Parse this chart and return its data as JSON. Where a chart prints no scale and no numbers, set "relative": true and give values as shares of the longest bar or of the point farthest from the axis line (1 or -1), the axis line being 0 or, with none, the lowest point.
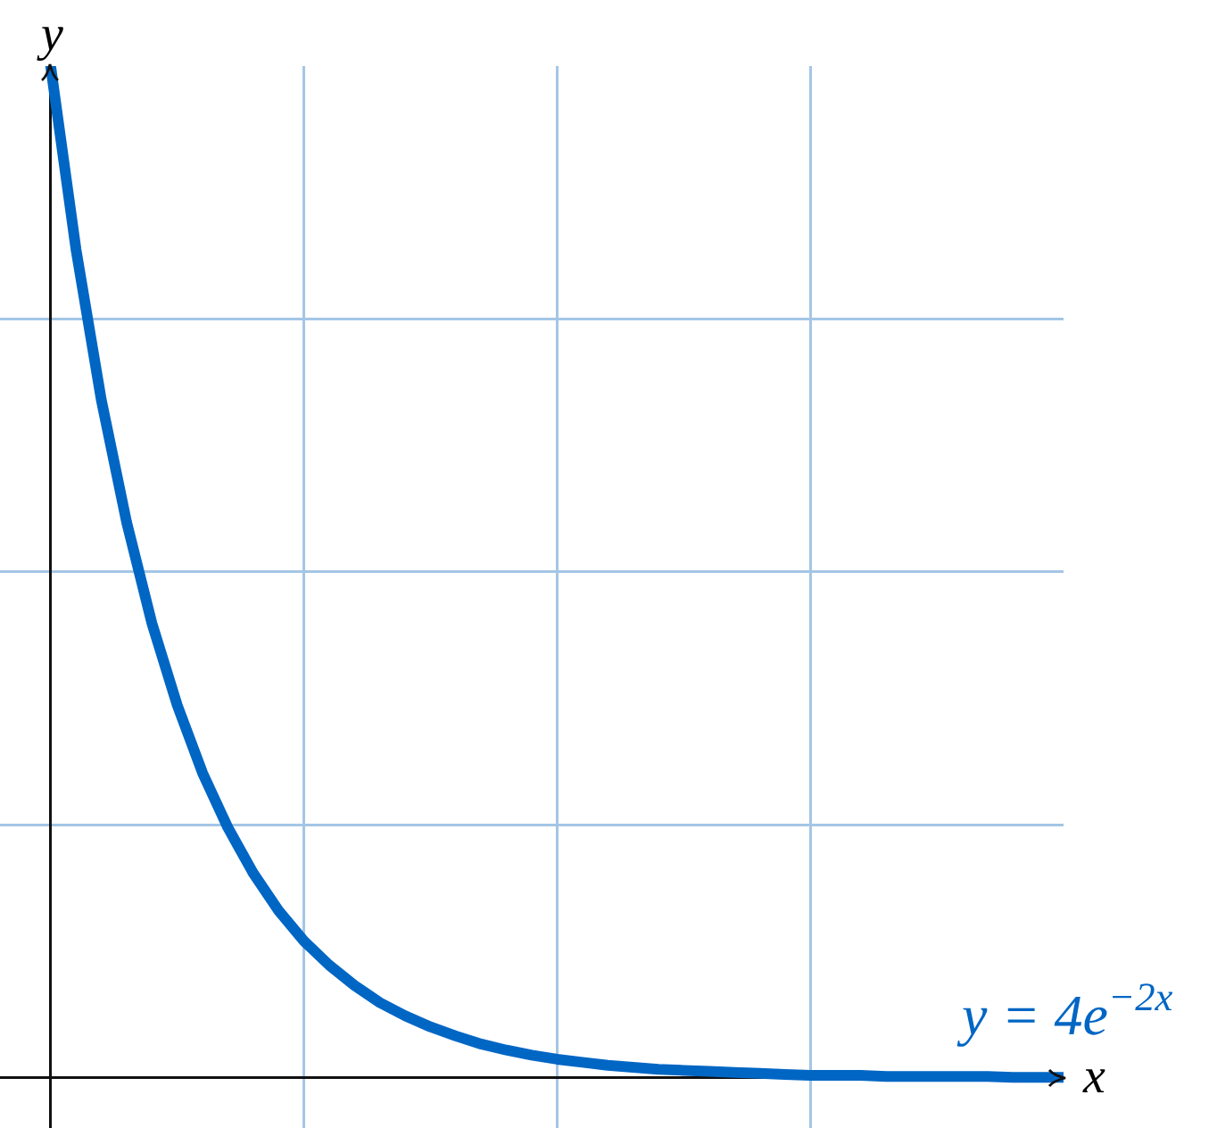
{
  "chart_data": {
    "type": "line",
    "relative": true,
    "xlabel": "x",
    "ylabel": "y",
    "grid": true,
    "categories": [
      null,
      null,
      null,
      null,
      null,
      null,
      null,
      null,
      null,
      null,
      null,
      null,
      null,
      null,
      null,
      null,
      null,
      null,
      null,
      null,
      null,
      null,
      null,
      null,
      null,
      null,
      null,
      null,
      null,
      null,
      null,
      null,
      null,
      null,
      null,
      null,
      null,
      null,
      null,
      null,
      null
    ],
    "series": [
      {
        "name": "y = 4e$^{−2x}$",
        "color": "#0066c4",
        "values": [
          1.0,
          0.819,
          0.67,
          0.549,
          0.449,
          0.368,
          0.301,
          0.247,
          0.202,
          0.165,
          0.135,
          0.111,
          0.091,
          0.074,
          0.061,
          0.05,
          0.041,
          0.033,
          0.027,
          0.022,
          0.018,
          0.015,
          0.012,
          0.01,
          0.008,
          0.007,
          0.006,
          0.005,
          0.004,
          0.003,
          0.002,
          0.002,
          0.002,
          0.001,
          0.001,
          0.001,
          0.001,
          0.001,
          0.0,
          0.0,
          0.0
        ]
      }
    ]
  }
}
